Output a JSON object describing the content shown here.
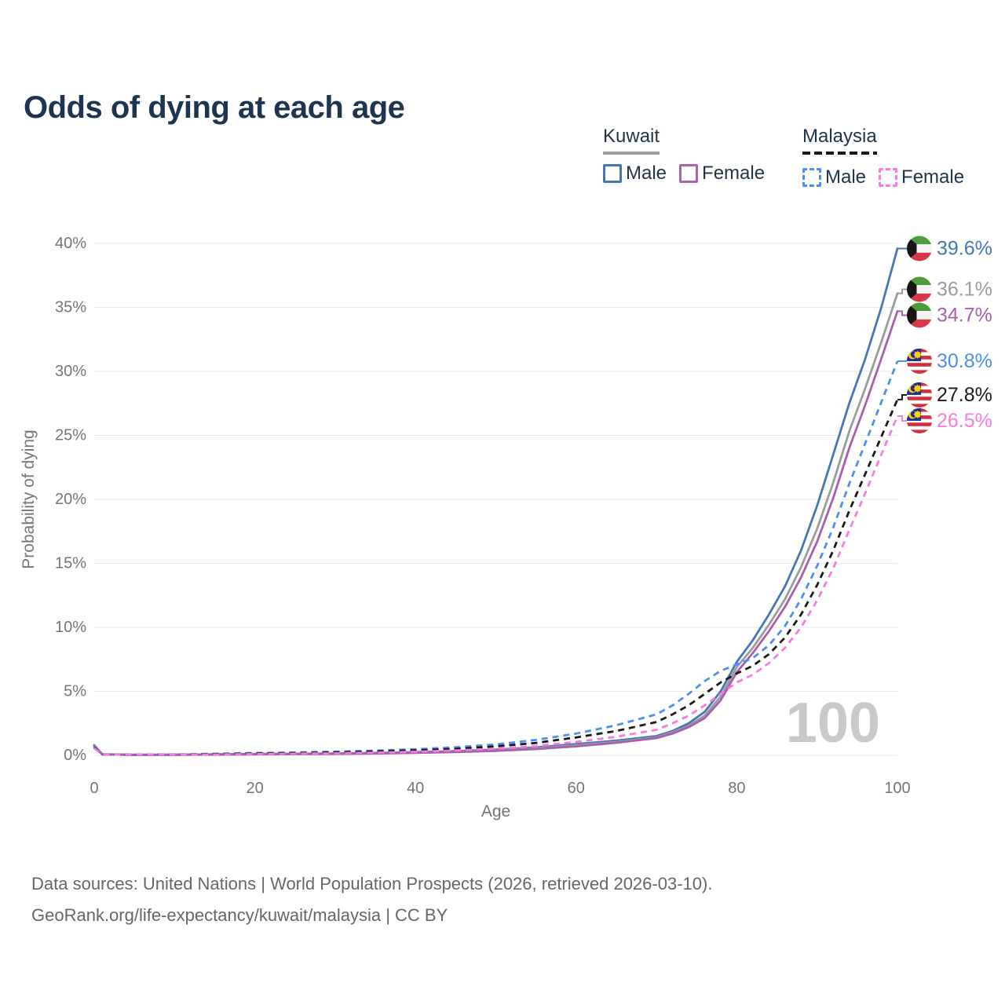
{
  "page": {
    "title": "Odds of dying at each age"
  },
  "legend": {
    "groups": [
      {
        "country": "Kuwait",
        "line_style": "solid",
        "underline_color": "#9e9e9e",
        "items": [
          {
            "label": "Male",
            "color": "#4577b6"
          },
          {
            "label": "Female",
            "color": "#ad62ad"
          }
        ]
      },
      {
        "country": "Malaysia",
        "line_style": "dashed",
        "underline_color": "#1a1a1a",
        "items": [
          {
            "label": "Male",
            "color": "#4b8ff5"
          },
          {
            "label": "Female",
            "color": "#fb7ae0"
          }
        ]
      }
    ]
  },
  "watermark": "100",
  "footer": {
    "line1": "Data sources: United Nations | World Population Prospects (2026, retrieved 2026-03-10).",
    "line2": "GeoRank.org/life-expectancy/kuwait/malaysia | CC BY"
  },
  "chart_data": {
    "type": "line",
    "title": "Odds of dying at each age",
    "xlabel": "Age",
    "ylabel": "Probability of dying",
    "xlim": [
      0,
      100
    ],
    "ylim": [
      0,
      40
    ],
    "xticks": [
      0,
      20,
      40,
      60,
      80,
      100
    ],
    "ytick_values": [
      0,
      5,
      10,
      15,
      20,
      25,
      30,
      35,
      40
    ],
    "ytick_labels": [
      "0%",
      "5%",
      "10%",
      "15%",
      "20%",
      "25%",
      "30%",
      "35%",
      "40%"
    ],
    "grid": "horizontal",
    "legend_position": "top-right",
    "x": [
      0,
      1,
      5,
      10,
      15,
      20,
      25,
      30,
      35,
      40,
      45,
      50,
      55,
      60,
      65,
      70,
      72,
      74,
      76,
      78,
      80,
      82,
      84,
      86,
      88,
      90,
      92,
      94,
      96,
      98,
      100
    ],
    "series": [
      {
        "id": "kuwait-male",
        "country": "Kuwait",
        "flag": "kuwait",
        "color": "#4577b6",
        "dash": "solid",
        "end_label": "39.6%",
        "values": [
          0.8,
          0.08,
          0.04,
          0.05,
          0.08,
          0.11,
          0.13,
          0.15,
          0.19,
          0.25,
          0.33,
          0.45,
          0.62,
          0.88,
          1.15,
          1.5,
          1.9,
          2.5,
          3.4,
          5.0,
          7.3,
          9.0,
          11.0,
          13.2,
          16.0,
          19.5,
          23.5,
          27.5,
          31.0,
          35.0,
          39.6
        ]
      },
      {
        "id": "kuwait-both",
        "country": "Kuwait",
        "flag": "kuwait",
        "color": "#9c9c9c",
        "dash": "solid",
        "end_label": "36.1%",
        "values": [
          0.75,
          0.07,
          0.04,
          0.04,
          0.07,
          0.09,
          0.11,
          0.13,
          0.17,
          0.22,
          0.29,
          0.4,
          0.55,
          0.78,
          1.05,
          1.4,
          1.8,
          2.3,
          3.1,
          4.6,
          6.9,
          8.4,
          10.2,
          12.2,
          14.7,
          17.7,
          21.3,
          25.3,
          28.7,
          32.3,
          36.1
        ]
      },
      {
        "id": "kuwait-female",
        "country": "Kuwait",
        "flag": "kuwait",
        "color": "#a95fad",
        "dash": "solid",
        "end_label": "34.7%",
        "values": [
          0.7,
          0.07,
          0.03,
          0.04,
          0.05,
          0.07,
          0.09,
          0.11,
          0.14,
          0.19,
          0.26,
          0.35,
          0.49,
          0.7,
          0.98,
          1.35,
          1.7,
          2.2,
          2.9,
          4.3,
          6.5,
          8.0,
          9.7,
          11.6,
          13.9,
          16.7,
          20.1,
          24.0,
          27.4,
          31.0,
          34.7
        ]
      },
      {
        "id": "malaysia-male",
        "country": "Malaysia",
        "flag": "malaysia",
        "color": "#4b8ff5",
        "dash": "dashed",
        "end_label": "30.8%",
        "values": [
          0.65,
          0.08,
          0.05,
          0.06,
          0.12,
          0.18,
          0.23,
          0.29,
          0.37,
          0.48,
          0.63,
          0.85,
          1.2,
          1.7,
          2.35,
          3.2,
          3.9,
          4.8,
          5.8,
          6.6,
          7.1,
          7.6,
          8.6,
          10.1,
          12.2,
          14.8,
          17.8,
          21.2,
          24.4,
          27.6,
          30.8
        ]
      },
      {
        "id": "malaysia-both",
        "country": "Malaysia",
        "flag": "malaysia",
        "color": "#1a1a1a",
        "dash": "dashed",
        "end_label": "27.8%",
        "values": [
          0.6,
          0.07,
          0.04,
          0.05,
          0.1,
          0.14,
          0.18,
          0.23,
          0.3,
          0.39,
          0.51,
          0.7,
          0.97,
          1.4,
          1.9,
          2.6,
          3.2,
          3.9,
          4.8,
          5.7,
          6.4,
          7.0,
          7.9,
          9.2,
          11.0,
          13.3,
          16.0,
          19.1,
          22.0,
          24.9,
          27.8
        ]
      },
      {
        "id": "malaysia-female",
        "country": "Malaysia",
        "flag": "malaysia",
        "color": "#fb7ae0",
        "dash": "dashed",
        "end_label": "26.5%",
        "values": [
          0.55,
          0.07,
          0.04,
          0.04,
          0.07,
          0.1,
          0.13,
          0.16,
          0.21,
          0.28,
          0.38,
          0.52,
          0.73,
          1.05,
          1.45,
          2.0,
          2.5,
          3.1,
          3.9,
          4.8,
          5.7,
          6.3,
          7.2,
          8.4,
          10.0,
          12.1,
          14.6,
          17.6,
          20.5,
          23.5,
          26.5
        ]
      }
    ]
  }
}
